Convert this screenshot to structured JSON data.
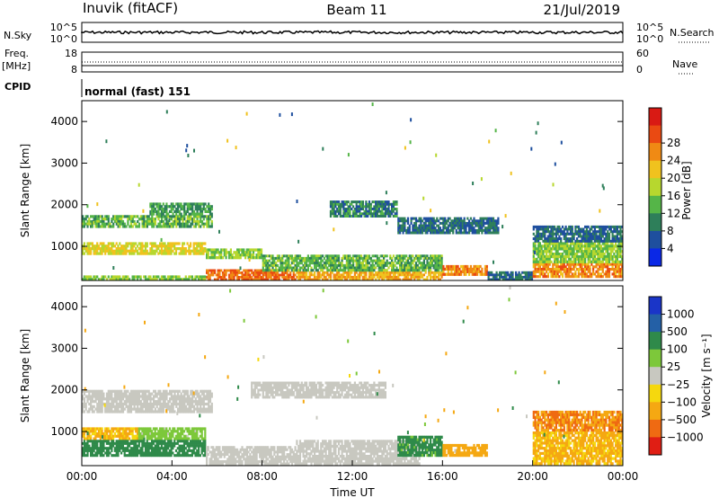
{
  "header": {
    "station": "Inuvik (fitACF)",
    "beam": "Beam 11",
    "date": "21/Jul/2019"
  },
  "strip_labels": {
    "left_nsky": "N.Sky",
    "left_freq": "Freq.",
    "left_freq_unit": "[MHz]",
    "left_cpid": "CPID",
    "right_nsearch": "N.Search",
    "right_nave": "Nave",
    "nsky_top": "10^5",
    "nsky_bottom": "10^0",
    "nsearch_top": "10^5",
    "nsearch_bottom": "10^0",
    "freq_top": "18",
    "freq_bottom": "8",
    "nave_top": "60",
    "nave_bottom": "0",
    "cpid_text": "normal (fast) 151"
  },
  "chart_data": [
    {
      "type": "heatmap",
      "name": "power",
      "ylabel": "Slant Range [km]",
      "colorbar_label": "Power [dB]",
      "ylim": [
        180,
        4500
      ],
      "yticks": [
        1000,
        2000,
        3000,
        4000
      ],
      "colorbar_ticks": [
        "4",
        "8",
        "12",
        "16",
        "20",
        "24",
        "28"
      ],
      "colorbar_colors": [
        "#0a28e6",
        "#1e4f9e",
        "#2e7f5a",
        "#55b548",
        "#b7d72e",
        "#f0c21e",
        "#f08a14",
        "#ea4a12",
        "#d91a14"
      ],
      "bands": [
        {
          "t0": 0.0,
          "t1": 5.8,
          "r0": 1450,
          "r1": 1750,
          "value": 14
        },
        {
          "t0": 3.0,
          "t1": 5.8,
          "r0": 1750,
          "r1": 2050,
          "value": 12
        },
        {
          "t0": 0.0,
          "t1": 5.5,
          "r0": 800,
          "r1": 1100,
          "value": 20
        },
        {
          "t0": 5.5,
          "t1": 8.0,
          "r0": 700,
          "r1": 950,
          "value": 16
        },
        {
          "t0": 5.5,
          "t1": 9.5,
          "r0": 180,
          "r1": 450,
          "value": 28
        },
        {
          "t0": 0.0,
          "t1": 5.5,
          "r0": 180,
          "r1": 300,
          "value": 16
        },
        {
          "t0": 9.5,
          "t1": 16.0,
          "r0": 180,
          "r1": 400,
          "value": 24
        },
        {
          "t0": 8.0,
          "t1": 16.0,
          "r0": 400,
          "r1": 800,
          "value": 14
        },
        {
          "t0": 11.0,
          "t1": 14.0,
          "r0": 1700,
          "r1": 2100,
          "value": 10
        },
        {
          "t0": 14.0,
          "t1": 18.5,
          "r0": 1300,
          "r1": 1700,
          "value": 8
        },
        {
          "t0": 16.0,
          "t1": 18.0,
          "r0": 300,
          "r1": 550,
          "value": 26
        },
        {
          "t0": 18.0,
          "t1": 20.0,
          "r0": 180,
          "r1": 400,
          "value": 8
        },
        {
          "t0": 20.0,
          "t1": 24.0,
          "r0": 250,
          "r1": 600,
          "value": 26
        },
        {
          "t0": 20.0,
          "t1": 24.0,
          "r0": 600,
          "r1": 1100,
          "value": 16
        },
        {
          "t0": 20.0,
          "t1": 24.0,
          "r0": 1100,
          "r1": 1500,
          "value": 8
        }
      ]
    },
    {
      "type": "heatmap",
      "name": "velocity",
      "ylabel": "Slant Range [km]",
      "xlabel": "Time UT",
      "colorbar_label": "Velocity [m s⁻¹]",
      "ylim": [
        180,
        4500
      ],
      "yticks": [
        1000,
        2000,
        3000,
        4000
      ],
      "xticks": [
        "00:00",
        "04:00",
        "08:00",
        "12:00",
        "16:00",
        "20:00",
        "00:00"
      ],
      "colorbar_ticks": [
        "1000",
        "500",
        "100",
        "25",
        "−25",
        "−100",
        "−500",
        "−1000"
      ],
      "colorbar_colors": [
        "#1a35c8",
        "#2460a6",
        "#2f8a4a",
        "#7dc83a",
        "#c8c8c0",
        "#f5d80e",
        "#f5a812",
        "#ef6a12",
        "#e01e14"
      ],
      "bands": [
        {
          "t0": 0.0,
          "t1": 5.8,
          "r0": 1450,
          "r1": 2000,
          "value": 0
        },
        {
          "t0": 7.5,
          "t1": 13.5,
          "r0": 1800,
          "r1": 2200,
          "value": 0
        },
        {
          "t0": 0.0,
          "t1": 2.5,
          "r0": 800,
          "r1": 1100,
          "value": -120
        },
        {
          "t0": 2.5,
          "t1": 5.5,
          "r0": 800,
          "r1": 1100,
          "value": 60
        },
        {
          "t0": 0.0,
          "t1": 5.5,
          "r0": 400,
          "r1": 800,
          "value": 200
        },
        {
          "t0": 5.5,
          "t1": 9.5,
          "r0": 200,
          "r1": 650,
          "value": 0
        },
        {
          "t0": 9.5,
          "t1": 15.0,
          "r0": 200,
          "r1": 800,
          "value": 0
        },
        {
          "t0": 14.0,
          "t1": 16.0,
          "r0": 400,
          "r1": 900,
          "value": 150
        },
        {
          "t0": 16.0,
          "t1": 18.0,
          "r0": 400,
          "r1": 700,
          "value": -200
        },
        {
          "t0": 20.0,
          "t1": 24.0,
          "r0": 1000,
          "r1": 1500,
          "value": -500
        },
        {
          "t0": 20.0,
          "t1": 24.0,
          "r0": 200,
          "r1": 1000,
          "value": -120
        }
      ]
    }
  ]
}
